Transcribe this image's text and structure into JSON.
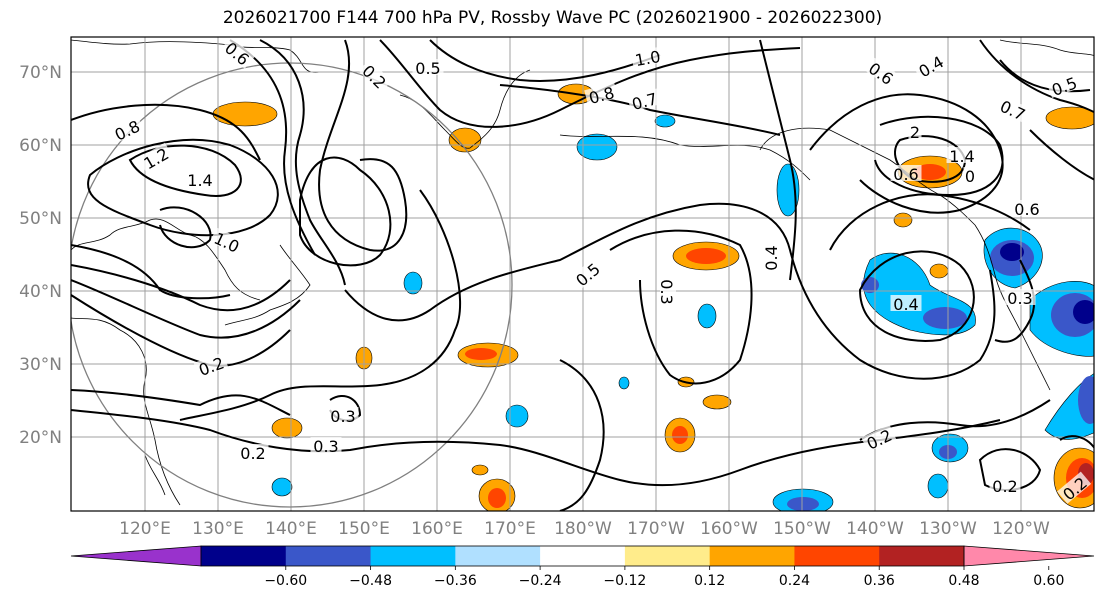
{
  "title": "2026021700 F144 700 hPa PV, Rossby Wave PC (2026021900 - 2026022300)",
  "map": {
    "lat_labels": [
      "70°N",
      "60°N",
      "50°N",
      "40°N",
      "30°N",
      "20°N"
    ],
    "lon_labels": [
      "120°E",
      "130°E",
      "140°E",
      "150°E",
      "160°E",
      "170°E",
      "180°W",
      "170°W",
      "160°W",
      "150°W",
      "140°W",
      "130°W",
      "120°W"
    ],
    "contour_labels": [
      "0.8",
      "1.2",
      "1.4",
      "1.0",
      "0.6",
      "0.5",
      "1.0",
      "0.8",
      "0.7",
      "0.6",
      "0.4",
      "0.5",
      "0.7",
      "2",
      "1.4",
      "0.6",
      "0",
      "0.6",
      "0.5",
      "0.3",
      "0.4",
      "0.2",
      "0.3",
      "0.2",
      "0.3",
      "0.2",
      "0.2",
      "0.3",
      "0.4",
      "0.2",
      "0.2"
    ]
  },
  "colorbar": {
    "colors": [
      "#9932cc",
      "#00008b",
      "#3a57c9",
      "#00bfff",
      "#b0e0ff",
      "#ffffff",
      "#ffec8b",
      "#ffa500",
      "#ff4500",
      "#b22222",
      "#ff88aa"
    ],
    "tick_labels": [
      "−0.60",
      "−0.48",
      "−0.36",
      "−0.24",
      "−0.12",
      "0.12",
      "0.24",
      "0.36",
      "0.48",
      "0.60"
    ]
  }
}
